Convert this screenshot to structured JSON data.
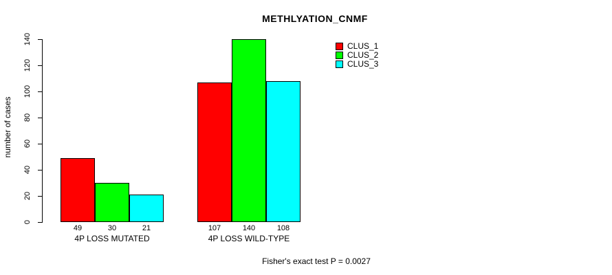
{
  "chart_data": {
    "type": "bar",
    "title": "METHLYATION_CNMF",
    "xlabel": "",
    "ylabel": "number of cases",
    "categories": [
      "4P LOSS MUTATED",
      "4P LOSS WILD-TYPE"
    ],
    "series": [
      {
        "name": "CLUS_1",
        "color": "#FF0000",
        "values": [
          49,
          107
        ]
      },
      {
        "name": "CLUS_2",
        "color": "#00FF00",
        "values": [
          30,
          140
        ]
      },
      {
        "name": "CLUS_3",
        "color": "#00FFFF",
        "values": [
          21,
          108
        ]
      }
    ],
    "ylim": [
      0,
      140
    ],
    "yticks": [
      0,
      20,
      40,
      60,
      80,
      100,
      120,
      140
    ],
    "grid": false,
    "legend_position": "top-right",
    "value_labels_shown": true,
    "annotation": "Fisher's exact test P = 0.0027"
  },
  "legend": {
    "items": [
      {
        "label": "CLUS_1",
        "color": "#FF0000"
      },
      {
        "label": "CLUS_2",
        "color": "#00FF00"
      },
      {
        "label": "CLUS_3",
        "color": "#00FFFF"
      }
    ]
  },
  "colors": {
    "background": "#FFFFFF",
    "axis": "#000000",
    "text": "#000000"
  }
}
